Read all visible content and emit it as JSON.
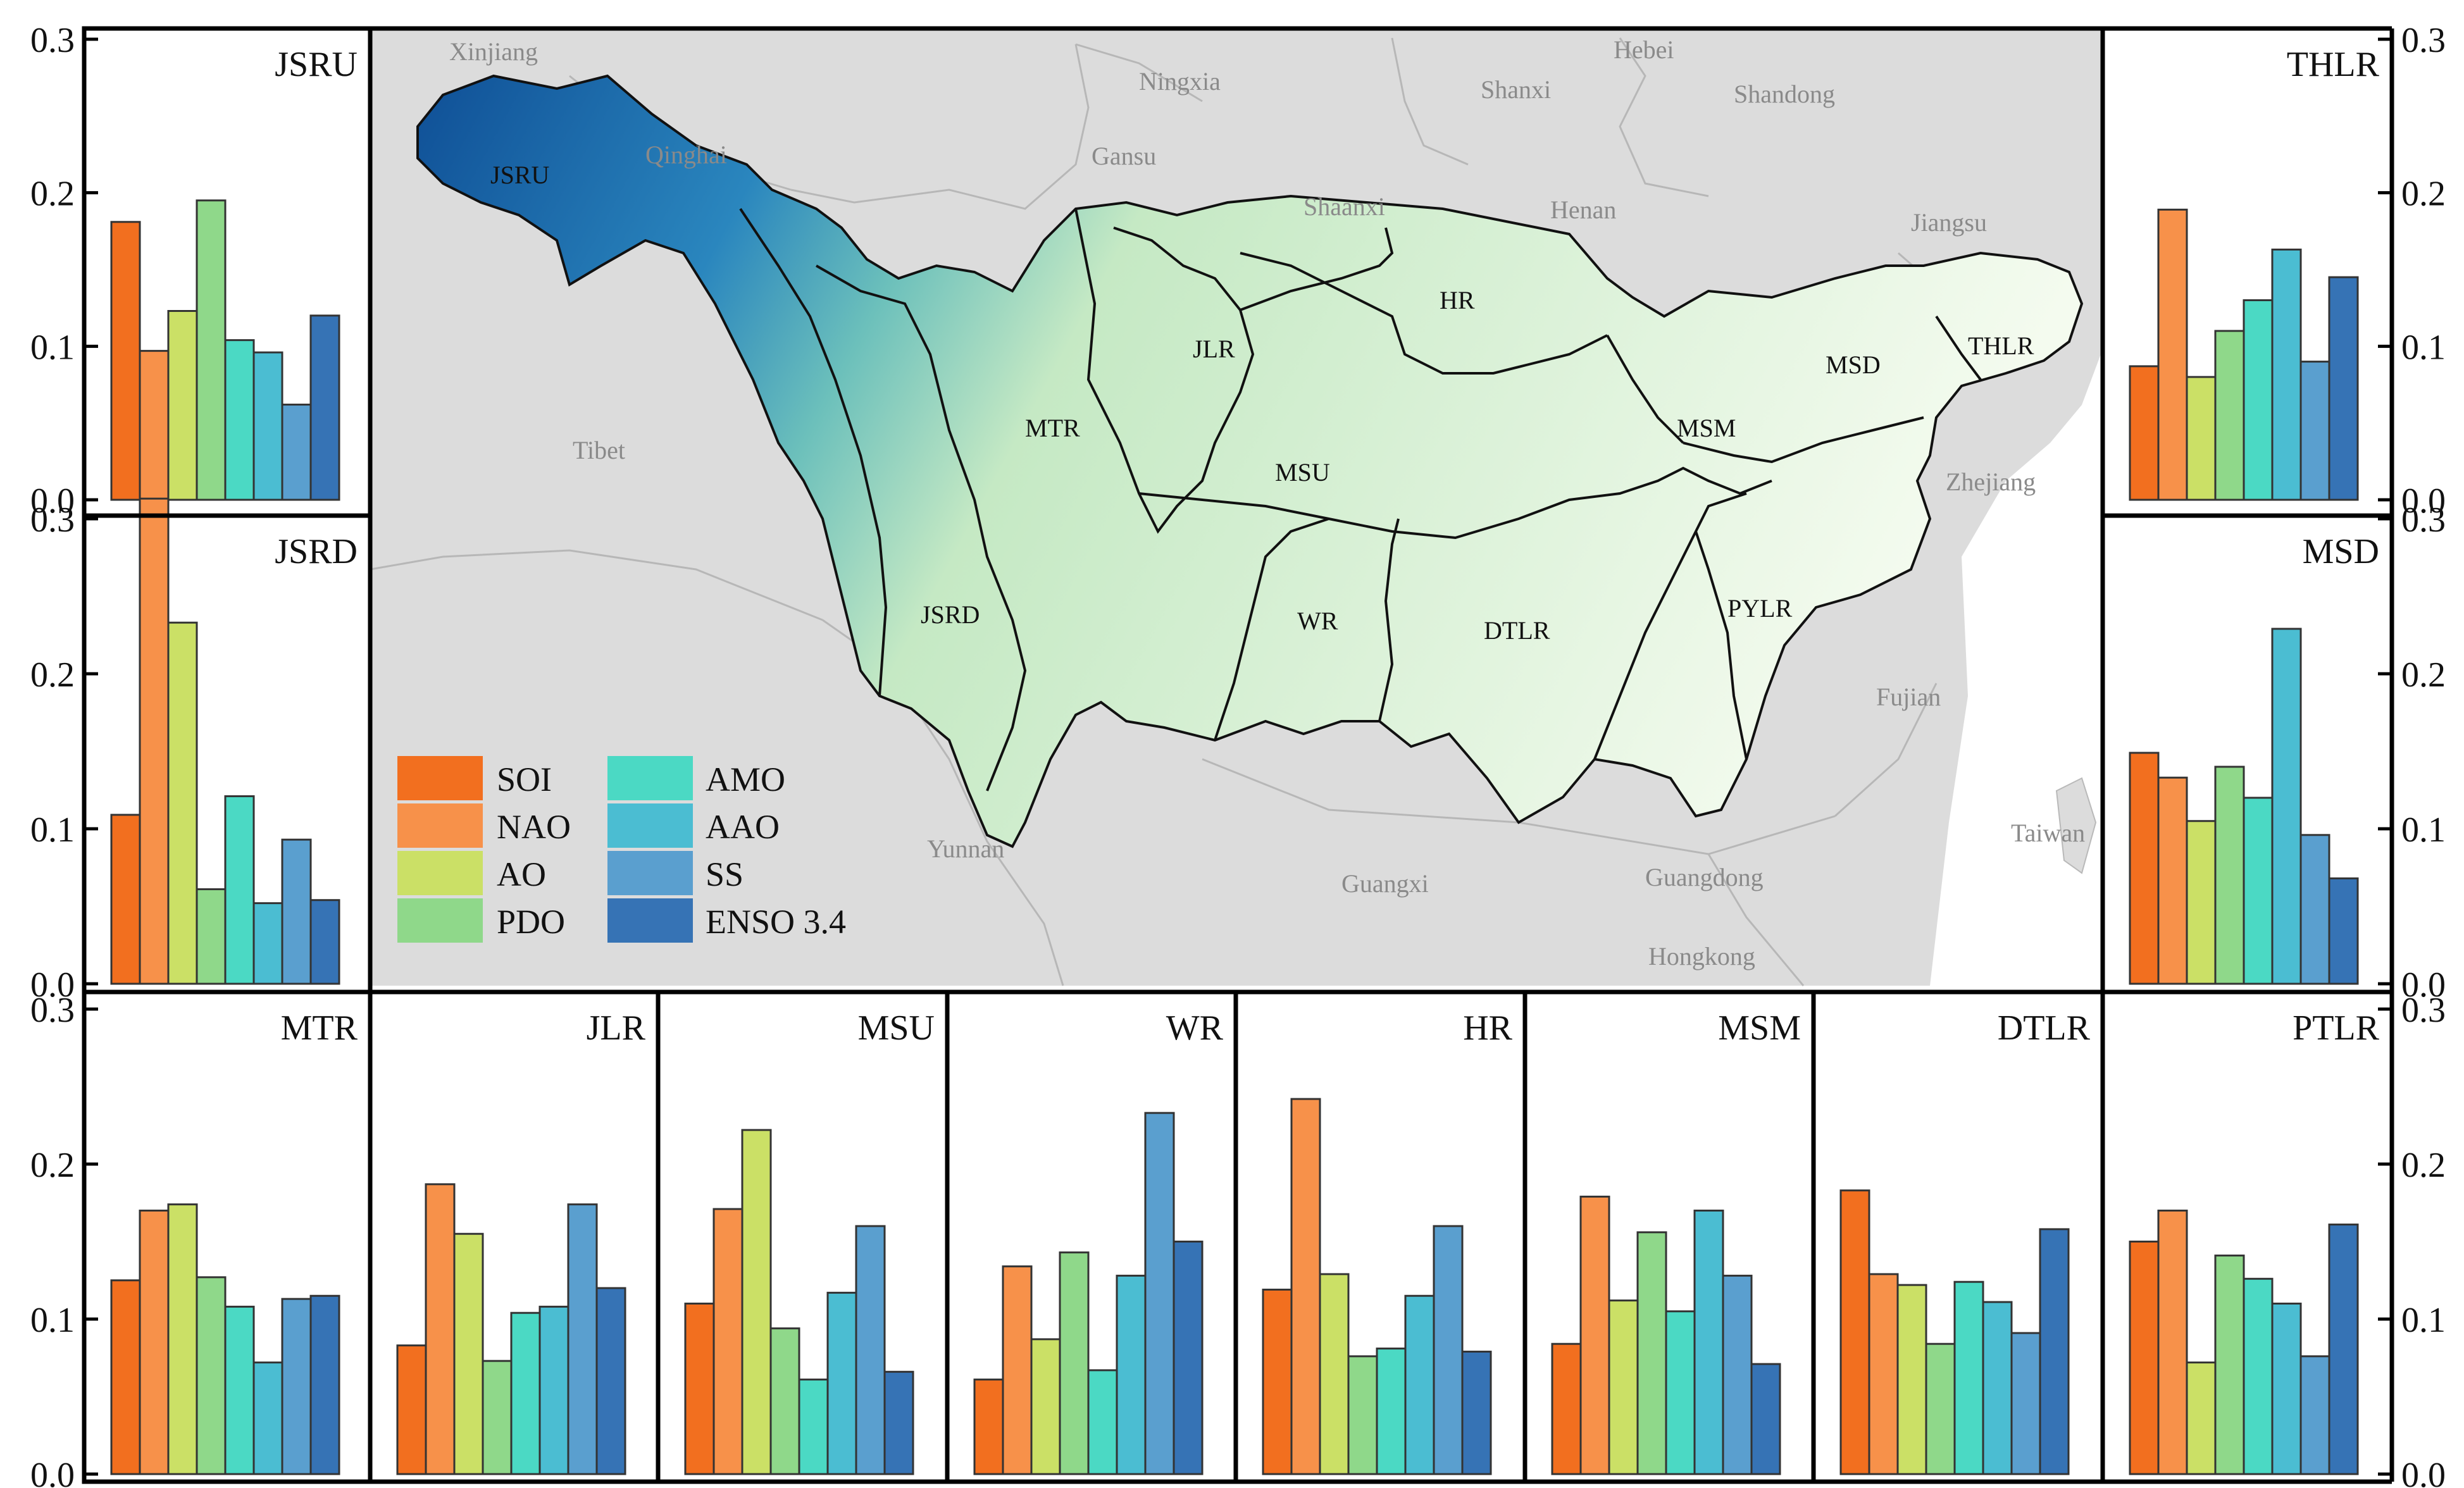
{
  "palette": {
    "SOI": "#f26f1f",
    "NAO": "#f7914a",
    "AO": "#cbe066",
    "PDO": "#8fd88a",
    "AMO": "#4bd9c4",
    "AAO": "#4bbdd2",
    "SS": "#5a9fcf",
    "ENSO 3.4": "#3673b5"
  },
  "legend": {
    "labels": [
      "SOI",
      "NAO",
      "AO",
      "PDO",
      "AMO",
      "AAO",
      "SS",
      "ENSO 3.4"
    ]
  },
  "axis": {
    "ticks": [
      "0.0",
      "0.1",
      "0.2",
      "0.3"
    ],
    "ylim": [
      0,
      0.3
    ]
  },
  "map": {
    "province_labels": [
      "Xinjiang",
      "Qinghai",
      "Ningxia",
      "Gansu",
      "Hebei",
      "Shanxi",
      "Shandong",
      "Shaanxi",
      "Henan",
      "Jiangsu",
      "Tibet",
      "Zhejiang",
      "Fujian",
      "Yunnan",
      "Guangxi",
      "Guangdong",
      "Hongkong",
      "Taiwan"
    ],
    "basin_labels": [
      "JSRU",
      "MTR",
      "JLR",
      "HR",
      "MSU",
      "MSM",
      "MSD",
      "THLR",
      "JSRD",
      "WR",
      "DTLR",
      "PYLR"
    ]
  },
  "chart_data": [
    {
      "type": "bar",
      "title": "JSRU",
      "categories": [
        "SOI",
        "NAO",
        "AO",
        "PDO",
        "AMO",
        "AAO",
        "SS",
        "ENSO 3.4"
      ],
      "values": [
        0.181,
        0.097,
        0.123,
        0.195,
        0.104,
        0.096,
        0.062,
        0.12
      ],
      "ylim": [
        0,
        0.3
      ]
    },
    {
      "type": "bar",
      "title": "JSRD",
      "categories": [
        "SOI",
        "NAO",
        "AO",
        "PDO",
        "AMO",
        "AAO",
        "SS",
        "ENSO 3.4"
      ],
      "values": [
        0.109,
        0.313,
        0.233,
        0.061,
        0.121,
        0.052,
        0.093,
        0.054
      ],
      "ylim": [
        0,
        0.3
      ]
    },
    {
      "type": "bar",
      "title": "THLR",
      "categories": [
        "SOI",
        "NAO",
        "AO",
        "PDO",
        "AMO",
        "AAO",
        "SS",
        "ENSO 3.4"
      ],
      "values": [
        0.087,
        0.189,
        0.08,
        0.11,
        0.13,
        0.163,
        0.09,
        0.145
      ],
      "ylim": [
        0,
        0.3
      ]
    },
    {
      "type": "bar",
      "title": "MSD",
      "categories": [
        "SOI",
        "NAO",
        "AO",
        "PDO",
        "AMO",
        "AAO",
        "SS",
        "ENSO 3.4"
      ],
      "values": [
        0.149,
        0.133,
        0.105,
        0.14,
        0.12,
        0.229,
        0.096,
        0.068
      ],
      "ylim": [
        0,
        0.3
      ]
    },
    {
      "type": "bar",
      "title": "MTR",
      "categories": [
        "SOI",
        "NAO",
        "AO",
        "PDO",
        "AMO",
        "AAO",
        "SS",
        "ENSO 3.4"
      ],
      "values": [
        0.125,
        0.17,
        0.174,
        0.127,
        0.108,
        0.072,
        0.113,
        0.115
      ],
      "ylim": [
        0,
        0.3
      ]
    },
    {
      "type": "bar",
      "title": "JLR",
      "categories": [
        "SOI",
        "NAO",
        "AO",
        "PDO",
        "AMO",
        "AAO",
        "SS",
        "ENSO 3.4"
      ],
      "values": [
        0.083,
        0.187,
        0.155,
        0.073,
        0.104,
        0.108,
        0.174,
        0.12
      ],
      "ylim": [
        0,
        0.3
      ]
    },
    {
      "type": "bar",
      "title": "MSU",
      "categories": [
        "SOI",
        "NAO",
        "AO",
        "PDO",
        "AMO",
        "AAO",
        "SS",
        "ENSO 3.4"
      ],
      "values": [
        0.11,
        0.171,
        0.222,
        0.094,
        0.061,
        0.117,
        0.16,
        0.066
      ],
      "ylim": [
        0,
        0.3
      ]
    },
    {
      "type": "bar",
      "title": "WR",
      "categories": [
        "SOI",
        "NAO",
        "AO",
        "PDO",
        "AMO",
        "AAO",
        "SS",
        "ENSO 3.4"
      ],
      "values": [
        0.061,
        0.134,
        0.087,
        0.143,
        0.067,
        0.128,
        0.233,
        0.15
      ],
      "ylim": [
        0,
        0.3
      ]
    },
    {
      "type": "bar",
      "title": "HR",
      "categories": [
        "SOI",
        "NAO",
        "AO",
        "PDO",
        "AMO",
        "AAO",
        "SS",
        "ENSO 3.4"
      ],
      "values": [
        0.119,
        0.242,
        0.129,
        0.076,
        0.081,
        0.115,
        0.16,
        0.079
      ],
      "ylim": [
        0,
        0.3
      ]
    },
    {
      "type": "bar",
      "title": "MSM",
      "categories": [
        "SOI",
        "NAO",
        "AO",
        "PDO",
        "AMO",
        "AAO",
        "SS",
        "ENSO 3.4"
      ],
      "values": [
        0.084,
        0.179,
        0.112,
        0.156,
        0.105,
        0.17,
        0.128,
        0.071
      ],
      "ylim": [
        0,
        0.3
      ]
    },
    {
      "type": "bar",
      "title": "DTLR",
      "categories": [
        "SOI",
        "NAO",
        "AO",
        "PDO",
        "AMO",
        "AAO",
        "SS",
        "ENSO 3.4"
      ],
      "values": [
        0.183,
        0.129,
        0.122,
        0.084,
        0.124,
        0.111,
        0.091,
        0.158
      ],
      "ylim": [
        0,
        0.3
      ]
    },
    {
      "type": "bar",
      "title": "PTLR",
      "categories": [
        "SOI",
        "NAO",
        "AO",
        "PDO",
        "AMO",
        "AAO",
        "SS",
        "ENSO 3.4"
      ],
      "values": [
        0.15,
        0.17,
        0.072,
        0.141,
        0.126,
        0.11,
        0.076,
        0.161
      ],
      "ylim": [
        0,
        0.3
      ]
    }
  ]
}
